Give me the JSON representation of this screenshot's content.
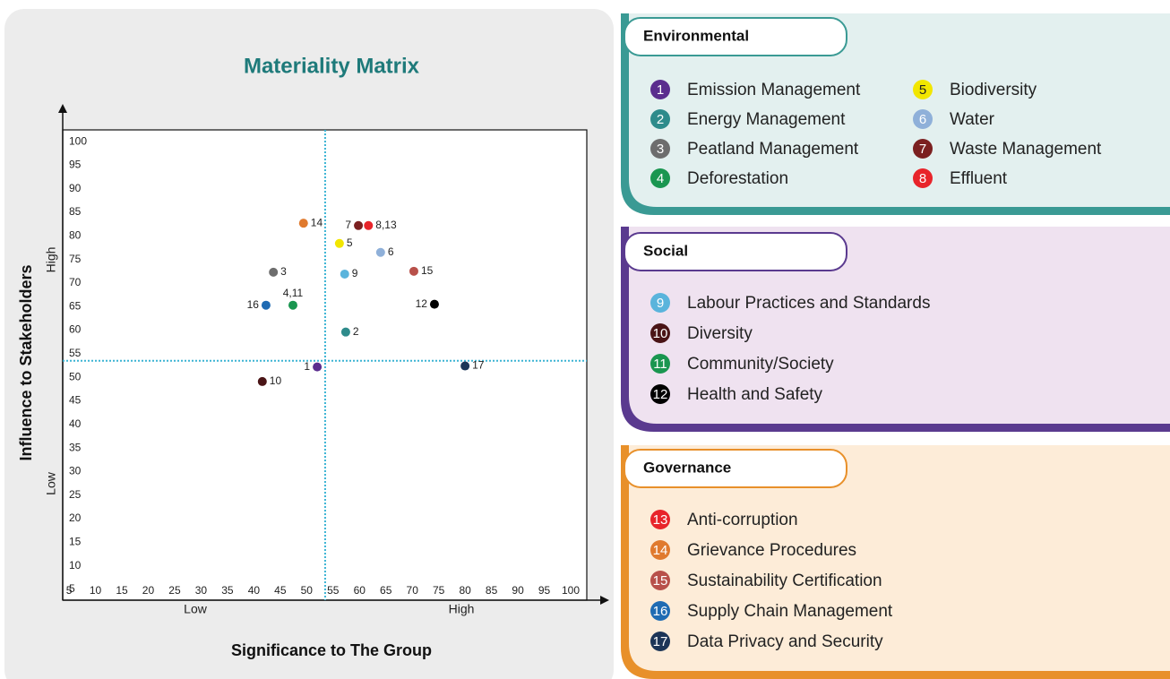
{
  "chart_data": {
    "type": "scatter",
    "title": "Materiality Matrix",
    "x_label": "Significance to The Group",
    "y_label": "Influence to Stakeholders",
    "x_levels": [
      "Low",
      "High"
    ],
    "y_levels": [
      "Low",
      "High"
    ],
    "xlim": [
      3.8,
      103.05
    ],
    "ylim": [
      2.7,
      102.5
    ],
    "xticks": [
      5,
      10,
      15,
      20,
      25,
      30,
      35,
      40,
      45,
      50,
      55,
      60,
      65,
      70,
      75,
      80,
      85,
      90,
      95,
      100
    ],
    "yticks": [
      5,
      10,
      15,
      20,
      25,
      30,
      35,
      40,
      45,
      50,
      55,
      60,
      65,
      70,
      75,
      80,
      85,
      90,
      95,
      100
    ],
    "x_threshold": 53.5,
    "y_threshold": 53.5,
    "threshold_color": "#3bb4d4",
    "points": [
      {
        "label": "1",
        "x": 52,
        "y": 52.2,
        "color": "#5b2d8e"
      },
      {
        "label": "2",
        "x": 57.4,
        "y": 59.6,
        "color": "#2e8b8b"
      },
      {
        "label": "3",
        "x": 43.7,
        "y": 72.3,
        "color": "#6d6d6d"
      },
      {
        "label": "4,11",
        "x": 47.4,
        "y": 65.3,
        "color": "#1a9650"
      },
      {
        "label": "5",
        "x": 56.2,
        "y": 78.4,
        "color": "#f2e600"
      },
      {
        "label": "6",
        "x": 64,
        "y": 76.5,
        "color": "#8fb0d9"
      },
      {
        "label": "7",
        "x": 59.8,
        "y": 82.2,
        "color": "#7b2020"
      },
      {
        "label": "8,13",
        "x": 61.7,
        "y": 82.2,
        "color": "#e8242a"
      },
      {
        "label": "9",
        "x": 57.2,
        "y": 71.9,
        "color": "#5ab4dc"
      },
      {
        "label": "10",
        "x": 41.6,
        "y": 49.1,
        "color": "#4a1416"
      },
      {
        "label": "12",
        "x": 74.2,
        "y": 65.5,
        "color": "#000000"
      },
      {
        "label": "14",
        "x": 49.4,
        "y": 82.7,
        "color": "#e07a2e"
      },
      {
        "label": "15",
        "x": 70.3,
        "y": 72.5,
        "color": "#b8504a"
      },
      {
        "label": "16",
        "x": 42.3,
        "y": 65.3,
        "color": "#1f6bb3"
      },
      {
        "label": "17",
        "x": 80,
        "y": 52.4,
        "color": "#1c3557"
      }
    ]
  },
  "legend": {
    "groups": [
      {
        "title": "Environmental",
        "color": "#3a9a94",
        "background": "#e3f0ef",
        "items": [
          {
            "number": 1,
            "name": "Emission Management",
            "color": "#5b2d8e"
          },
          {
            "number": 2,
            "name": "Energy Management",
            "color": "#2e8b8b"
          },
          {
            "number": 3,
            "name": "Peatland Management",
            "color": "#6d6d6d"
          },
          {
            "number": 4,
            "name": "Deforestation",
            "color": "#1a9650"
          },
          {
            "number": 5,
            "name": "Biodiversity",
            "color": "#f2e600"
          },
          {
            "number": 6,
            "name": "Water",
            "color": "#8fb0d9"
          },
          {
            "number": 7,
            "name": "Waste Management",
            "color": "#7b2020"
          },
          {
            "number": 8,
            "name": "Effluent",
            "color": "#e8242a"
          }
        ]
      },
      {
        "title": "Social",
        "color": "#5a3a8f",
        "background": "#efe2f0",
        "items": [
          {
            "number": 9,
            "name": "Labour Practices and Standards",
            "color": "#5ab4dc"
          },
          {
            "number": 10,
            "name": "Diversity",
            "color": "#4a1416"
          },
          {
            "number": 11,
            "name": "Community/Society",
            "color": "#1a9650"
          },
          {
            "number": 12,
            "name": "Health and Safety",
            "color": "#000000"
          }
        ]
      },
      {
        "title": "Governance",
        "color": "#e8902a",
        "background": "#fdecd8",
        "items": [
          {
            "number": 13,
            "name": "Anti-corruption",
            "color": "#e8242a"
          },
          {
            "number": 14,
            "name": "Grievance Procedures",
            "color": "#e07a2e"
          },
          {
            "number": 15,
            "name": "Sustainability Certification",
            "color": "#b8504a"
          },
          {
            "number": 16,
            "name": "Supply Chain Management",
            "color": "#1f6bb3"
          },
          {
            "number": 17,
            "name": "Data Privacy and Security",
            "color": "#1c3557"
          }
        ]
      }
    ]
  }
}
